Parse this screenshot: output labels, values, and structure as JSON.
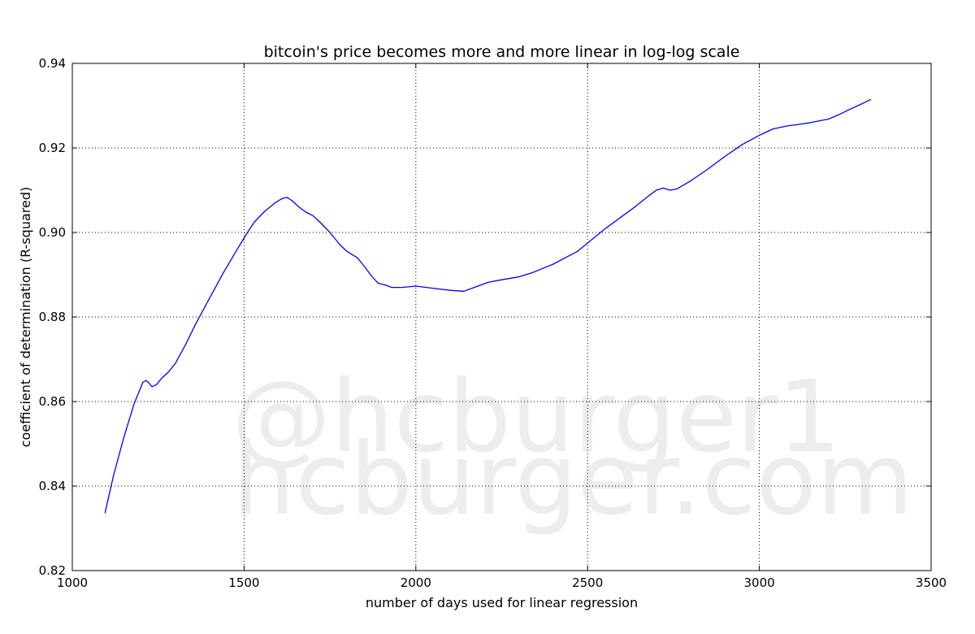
{
  "chart_data": {
    "type": "line",
    "title": "bitcoin's price becomes more and more linear in log-log scale",
    "xlabel": "number of days used for linear regression",
    "ylabel": "coefficient of determination (R-squared)",
    "xlim": [
      1000,
      3500
    ],
    "ylim": [
      0.82,
      0.94
    ],
    "x_ticks": [
      "1000",
      "1500",
      "2000",
      "2500",
      "3000",
      "3500"
    ],
    "y_ticks": [
      "0.82",
      "0.84",
      "0.86",
      "0.88",
      "0.90",
      "0.92",
      "0.94"
    ],
    "grid": true,
    "line_color": "#0000ff",
    "watermark": [
      "@hcburger1",
      "hcburger.com"
    ],
    "series": [
      {
        "x": [
          1095,
          1120,
          1150,
          1180,
          1205,
          1215,
          1222,
          1232,
          1245,
          1260,
          1280,
          1300,
          1330,
          1360,
          1400,
          1440,
          1480,
          1510,
          1530,
          1560,
          1590,
          1610,
          1625,
          1640,
          1660,
          1680,
          1700,
          1720,
          1750,
          1780,
          1800,
          1830,
          1850,
          1870,
          1890,
          1910,
          1930,
          1960,
          2000,
          2050,
          2100,
          2140,
          2170,
          2210,
          2250,
          2300,
          2340,
          2360,
          2400,
          2430,
          2470,
          2500,
          2550,
          2600,
          2640,
          2680,
          2700,
          2720,
          2740,
          2760,
          2800,
          2850,
          2900,
          2950,
          3000,
          3040,
          3080,
          3110,
          3150,
          3180,
          3200,
          3230,
          3260,
          3300,
          3325
        ],
        "y": [
          0.8336,
          0.8425,
          0.8515,
          0.8595,
          0.8645,
          0.865,
          0.8645,
          0.8635,
          0.864,
          0.8655,
          0.867,
          0.869,
          0.8735,
          0.8785,
          0.8845,
          0.8905,
          0.896,
          0.9,
          0.9025,
          0.905,
          0.907,
          0.908,
          0.9083,
          0.9075,
          0.906,
          0.9048,
          0.904,
          0.9025,
          0.9,
          0.897,
          0.8955,
          0.894,
          0.892,
          0.8898,
          0.888,
          0.8876,
          0.887,
          0.887,
          0.8873,
          0.8868,
          0.8863,
          0.8861,
          0.887,
          0.8882,
          0.8888,
          0.8895,
          0.8905,
          0.8912,
          0.8925,
          0.8938,
          0.8955,
          0.8975,
          0.9008,
          0.9038,
          0.9062,
          0.9088,
          0.91,
          0.9105,
          0.91,
          0.9103,
          0.9122,
          0.915,
          0.918,
          0.9208,
          0.923,
          0.9245,
          0.9252,
          0.9255,
          0.926,
          0.9265,
          0.9268,
          0.9278,
          0.929,
          0.9305,
          0.9315
        ]
      }
    ]
  }
}
